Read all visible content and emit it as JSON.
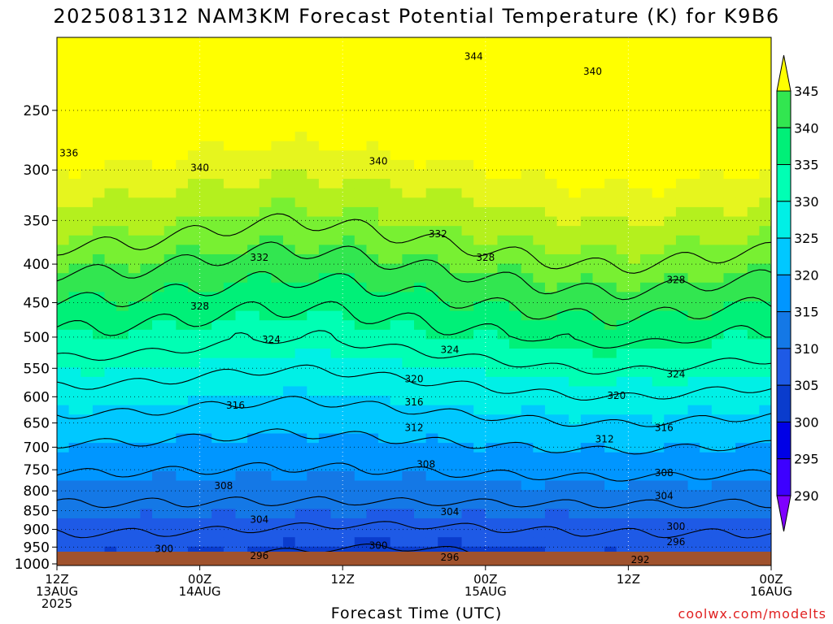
{
  "title": "2025081312 NAM3KM Forecast Potential Temperature (K) for K9B6",
  "credit": "coolwx.com/modelts",
  "colors": {
    "levels": [
      "#7f00ff",
      "#3d00ff",
      "#0000e6",
      "#0a3ccd",
      "#1e5ae6",
      "#1478e6",
      "#0096ff",
      "#00c8ff",
      "#00f0e6",
      "#00ffb4",
      "#00f078",
      "#32e650",
      "#78f032",
      "#b4f01e",
      "#e6f51e",
      "#ffff00"
    ],
    "ground": "#a0522d",
    "contour": "#000000"
  },
  "chart_data": {
    "type": "heatmap",
    "title": "2025081312 NAM3KM Forecast Potential Temperature (K) for K9B6",
    "xlabel": "Forecast Time (UTC)",
    "ylabel": "",
    "x_ticks": [
      {
        "hour": 0,
        "lines": [
          "12Z",
          "13AUG",
          "2025"
        ]
      },
      {
        "hour": 12,
        "lines": [
          "00Z",
          "14AUG"
        ]
      },
      {
        "hour": 24,
        "lines": [
          "12Z"
        ]
      },
      {
        "hour": 36,
        "lines": [
          "00Z",
          "15AUG"
        ]
      },
      {
        "hour": 48,
        "lines": [
          "12Z"
        ]
      },
      {
        "hour": 60,
        "lines": [
          "00Z",
          "16AUG"
        ]
      }
    ],
    "x_range_hours": [
      0,
      60
    ],
    "y_axis": "pressure (log scale)",
    "y_ticks": [
      250,
      300,
      350,
      400,
      450,
      500,
      550,
      600,
      650,
      700,
      750,
      800,
      850,
      900,
      950,
      1000
    ],
    "y_range": [
      200,
      1005
    ],
    "colorbar": {
      "ticks": [
        345,
        340,
        335,
        330,
        325,
        320,
        315,
        310,
        305,
        300,
        295,
        290
      ],
      "unit": "K"
    },
    "grid": true,
    "contour_interval": 4,
    "contour_labels": [
      {
        "value": "344",
        "hour": 35,
        "p": 212
      },
      {
        "value": "340",
        "hour": 45,
        "p": 222
      },
      {
        "value": "336",
        "hour": 1,
        "p": 285
      },
      {
        "value": "340",
        "hour": 12,
        "p": 298
      },
      {
        "value": "340",
        "hour": 27,
        "p": 292
      },
      {
        "value": "332",
        "hour": 32,
        "p": 365
      },
      {
        "value": "332",
        "hour": 17,
        "p": 392
      },
      {
        "value": "328",
        "hour": 36,
        "p": 392
      },
      {
        "value": "328",
        "hour": 52,
        "p": 420
      },
      {
        "value": "328",
        "hour": 12,
        "p": 455
      },
      {
        "value": "324",
        "hour": 18,
        "p": 504
      },
      {
        "value": "324",
        "hour": 33,
        "p": 520
      },
      {
        "value": "324",
        "hour": 52,
        "p": 560
      },
      {
        "value": "320",
        "hour": 30,
        "p": 568
      },
      {
        "value": "320",
        "hour": 47,
        "p": 598
      },
      {
        "value": "316",
        "hour": 15,
        "p": 616
      },
      {
        "value": "316",
        "hour": 30,
        "p": 610
      },
      {
        "value": "316",
        "hour": 51,
        "p": 660
      },
      {
        "value": "312",
        "hour": 30,
        "p": 660
      },
      {
        "value": "312",
        "hour": 46,
        "p": 683
      },
      {
        "value": "308",
        "hour": 31,
        "p": 738
      },
      {
        "value": "308",
        "hour": 14,
        "p": 788
      },
      {
        "value": "308",
        "hour": 51,
        "p": 757
      },
      {
        "value": "304",
        "hour": 51,
        "p": 813
      },
      {
        "value": "304",
        "hour": 33,
        "p": 853
      },
      {
        "value": "304",
        "hour": 17,
        "p": 873
      },
      {
        "value": "300",
        "hour": 52,
        "p": 892
      },
      {
        "value": "300",
        "hour": 9,
        "p": 955
      },
      {
        "value": "300",
        "hour": 27,
        "p": 946
      },
      {
        "value": "296",
        "hour": 52,
        "p": 935
      },
      {
        "value": "296",
        "hour": 17,
        "p": 975
      },
      {
        "value": "296",
        "hour": 33,
        "p": 980
      },
      {
        "value": "292",
        "hour": 49,
        "p": 988
      }
    ]
  }
}
